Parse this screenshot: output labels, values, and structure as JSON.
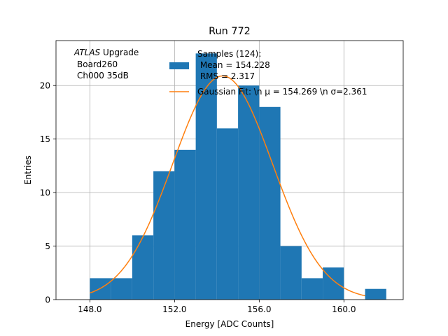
{
  "chart_data": {
    "type": "bar",
    "title": "Run 772",
    "xlabel": "Energy [ADC Counts]",
    "ylabel": "Entries",
    "xlim": [
      146.4,
      162.8
    ],
    "ylim": [
      0,
      24.2
    ],
    "x_ticks": [
      148,
      152,
      156,
      160
    ],
    "x_tick_labels": [
      "148.0",
      "152.0",
      "156.0",
      "160.0"
    ],
    "y_ticks": [
      0,
      5,
      10,
      15,
      20
    ],
    "y_tick_labels": [
      "0",
      "5",
      "10",
      "15",
      "20"
    ],
    "grid": true,
    "bin_width": 1,
    "bins": [
      {
        "x0": 148,
        "value": 2
      },
      {
        "x0": 149,
        "value": 2
      },
      {
        "x0": 150,
        "value": 6
      },
      {
        "x0": 151,
        "value": 12
      },
      {
        "x0": 152,
        "value": 14
      },
      {
        "x0": 153,
        "value": 23
      },
      {
        "x0": 154,
        "value": 16
      },
      {
        "x0": 155,
        "value": 20
      },
      {
        "x0": 156,
        "value": 18
      },
      {
        "x0": 157,
        "value": 5
      },
      {
        "x0": 158,
        "value": 2
      },
      {
        "x0": 159,
        "value": 3
      },
      {
        "x0": 160,
        "value": 0
      },
      {
        "x0": 161,
        "value": 1
      }
    ],
    "fit": {
      "amplitude": 20.9,
      "mean": 154.269,
      "sigma": 2.361,
      "x_range": [
        148,
        161
      ]
    },
    "annotation": {
      "experiment": "ATLAS",
      "experiment_suffix": " Upgrade",
      "board": "Board260",
      "channel": "Ch000 35dB"
    },
    "legend": {
      "position": "top-right",
      "entries": [
        {
          "type": "bar",
          "lines": [
            "Samples (124):",
            " Mean = 154.228",
            " RMS = 2.317"
          ]
        },
        {
          "type": "line",
          "lines": [
            "Gaussian Fit: \\n $\\mu$ = 154.269 \\n $\\sigma$=2.361"
          ],
          "display": "Gaussian Fit: \\n μ = 154.269 \\n σ=2.361"
        }
      ]
    },
    "colors": {
      "bars": "#1f77b4",
      "fit": "#ff7f0e",
      "grid": "#b0b0b0"
    }
  }
}
